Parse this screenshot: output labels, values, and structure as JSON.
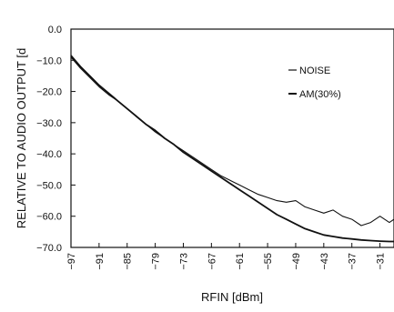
{
  "chart_data": {
    "type": "line",
    "xlabel": "RFIN [dBm]",
    "ylabel": "RELATIVE TO AUDIO OUTPUT [d",
    "x_tick_labels": [
      "−97",
      "−91",
      "−85",
      "−79",
      "−73",
      "−67",
      "−61",
      "−55",
      "−49",
      "−43",
      "−37",
      "−31"
    ],
    "x_ticks": [
      -97,
      -91,
      -85,
      -79,
      -73,
      -67,
      -61,
      -55,
      -49,
      -43,
      -37,
      -31
    ],
    "xlim": [
      -97,
      -28
    ],
    "y_tick_labels": [
      "0.0",
      "−10.0",
      "−20.0",
      "−30.0",
      "−40.0",
      "−50.0",
      "−60.0",
      "−70.0"
    ],
    "y_ticks": [
      0,
      -10,
      -20,
      -30,
      -40,
      -50,
      -60,
      -70
    ],
    "ylim": [
      -70,
      0
    ],
    "grid": false,
    "legend_position": "top-right",
    "series": [
      {
        "name": "NOISE",
        "color": "#111111",
        "x": [
          -97,
          -95,
          -93,
          -91,
          -89,
          -87,
          -85,
          -83,
          -81,
          -79,
          -77,
          -75,
          -73,
          -71,
          -69,
          -67,
          -65,
          -63,
          -61,
          -59,
          -57,
          -55,
          -53,
          -51,
          -49,
          -47,
          -45,
          -43,
          -41,
          -39,
          -37,
          -35,
          -33,
          -31,
          -29,
          -28
        ],
        "y": [
          -9,
          -12.5,
          -15.5,
          -18.5,
          -21,
          -23,
          -25.5,
          -28,
          -30.5,
          -33,
          -35,
          -37,
          -39,
          -41,
          -43,
          -45,
          -47,
          -48.5,
          -50,
          -51.5,
          -53,
          -54,
          -55,
          -55.5,
          -55,
          -57,
          -58,
          -59,
          -58,
          -60,
          -61,
          -63,
          -62,
          -60,
          -62,
          -61
        ]
      },
      {
        "name": "AM(30%)",
        "color": "#111111",
        "x": [
          -97,
          -95,
          -93,
          -91,
          -89,
          -87,
          -85,
          -83,
          -81,
          -79,
          -77,
          -75,
          -73,
          -71,
          -69,
          -67,
          -65,
          -63,
          -61,
          -59,
          -57,
          -55,
          -53,
          -51,
          -49,
          -47,
          -45,
          -43,
          -41,
          -39,
          -37,
          -35,
          -33,
          -31,
          -29,
          -28
        ],
        "y": [
          -8.5,
          -12,
          -15,
          -18,
          -20.5,
          -23,
          -25.5,
          -28,
          -30.5,
          -32.5,
          -35,
          -37,
          -39.5,
          -41.5,
          -43.5,
          -45.5,
          -47.5,
          -49.5,
          -51.5,
          -53.5,
          -55.5,
          -57.5,
          -59.5,
          -61,
          -62.5,
          -64,
          -65,
          -66,
          -66.5,
          -67,
          -67.3,
          -67.6,
          -67.8,
          -68,
          -68.1,
          -68.1
        ]
      }
    ]
  }
}
